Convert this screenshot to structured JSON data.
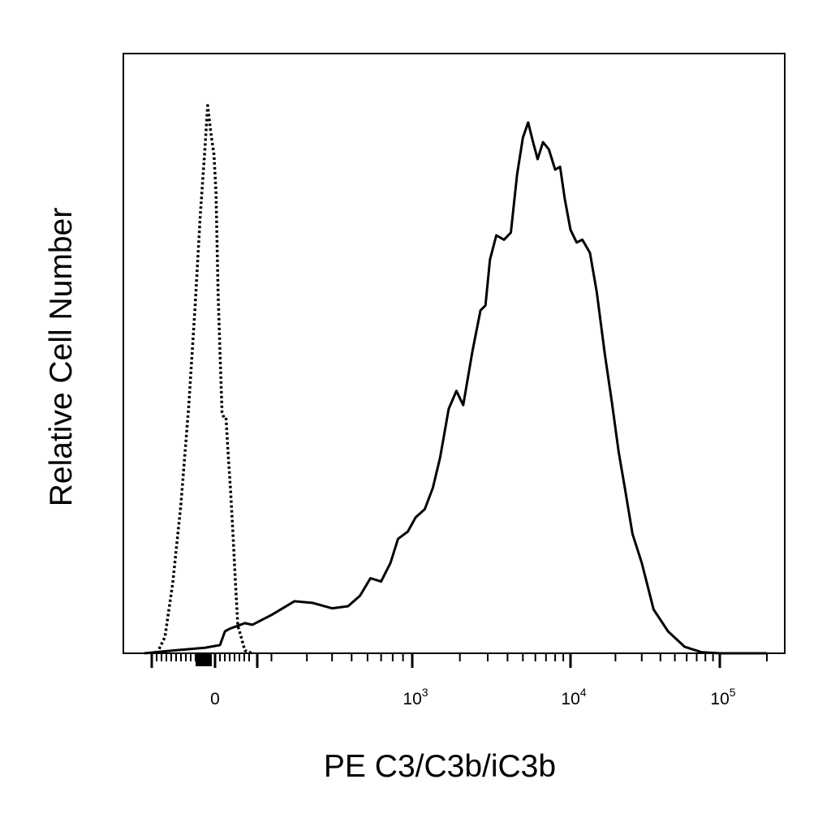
{
  "chart_data": {
    "type": "line",
    "title": "",
    "xlabel": "PE  C3/C3b/iC3b",
    "ylabel": "Relative Cell Number",
    "x_scale": "biexponential (linear near 0, log above 10^2)",
    "xlim": [
      -150,
      200000
    ],
    "ylim": [
      0,
      100
    ],
    "grid": false,
    "legend": "none",
    "x_ticks": [
      {
        "value": 0,
        "base": "0",
        "exp": ""
      },
      {
        "value": 1000,
        "base": "10",
        "exp": "3"
      },
      {
        "value": 10000,
        "base": "10",
        "exp": "4"
      },
      {
        "value": 100000,
        "base": "10",
        "exp": "5"
      }
    ],
    "series": [
      {
        "style": "dotted",
        "color": "#000000",
        "points": [
          [
            -110,
            0
          ],
          [
            -95,
            3
          ],
          [
            -80,
            13
          ],
          [
            -65,
            27
          ],
          [
            -50,
            45
          ],
          [
            -38,
            63
          ],
          [
            -28,
            80
          ],
          [
            -20,
            91
          ],
          [
            -14,
            100
          ],
          [
            -8,
            95
          ],
          [
            -2,
            91
          ],
          [
            4,
            84
          ],
          [
            12,
            66
          ],
          [
            20,
            55
          ],
          [
            28,
            44
          ],
          [
            36,
            43
          ],
          [
            44,
            43
          ],
          [
            52,
            37
          ],
          [
            62,
            30
          ],
          [
            72,
            22
          ],
          [
            82,
            13
          ],
          [
            92,
            5
          ],
          [
            105,
            3
          ],
          [
            120,
            0.5
          ],
          [
            150,
            0
          ]
        ]
      },
      {
        "style": "solid",
        "color": "#000000",
        "points": [
          [
            -150,
            0
          ],
          [
            -80,
            0.5
          ],
          [
            -20,
            1
          ],
          [
            20,
            1.5
          ],
          [
            40,
            4
          ],
          [
            60,
            4.5
          ],
          [
            90,
            5
          ],
          [
            120,
            5.5
          ],
          [
            150,
            5.2
          ],
          [
            200,
            7
          ],
          [
            260,
            9.5
          ],
          [
            320,
            9.2
          ],
          [
            400,
            8.2
          ],
          [
            480,
            8.6
          ],
          [
            550,
            10.5
          ],
          [
            620,
            13.7
          ],
          [
            700,
            13.1
          ],
          [
            780,
            16.5
          ],
          [
            850,
            20.9
          ],
          [
            950,
            22.2
          ],
          [
            1050,
            24.8
          ],
          [
            1200,
            26.3
          ],
          [
            1350,
            30.2
          ],
          [
            1500,
            35.7
          ],
          [
            1700,
            44.6
          ],
          [
            1900,
            47.9
          ],
          [
            2100,
            45.3
          ],
          [
            2400,
            55.1
          ],
          [
            2700,
            62.6
          ],
          [
            2900,
            63.5
          ],
          [
            3100,
            71.9
          ],
          [
            3400,
            76.3
          ],
          [
            3800,
            75.5
          ],
          [
            4200,
            76.8
          ],
          [
            4600,
            87.4
          ],
          [
            5000,
            94.1
          ],
          [
            5400,
            96.9
          ],
          [
            5800,
            93.3
          ],
          [
            6200,
            90.2
          ],
          [
            6700,
            93.3
          ],
          [
            7300,
            92.0
          ],
          [
            8000,
            88.3
          ],
          [
            8600,
            88.8
          ],
          [
            9200,
            83.0
          ],
          [
            10000,
            77.3
          ],
          [
            11000,
            75.0
          ],
          [
            12000,
            75.5
          ],
          [
            13500,
            73.1
          ],
          [
            15000,
            65.9
          ],
          [
            17000,
            54.5
          ],
          [
            19000,
            45.5
          ],
          [
            21000,
            36.8
          ],
          [
            23000,
            30.5
          ],
          [
            26000,
            21.8
          ],
          [
            30000,
            16.5
          ],
          [
            36000,
            8.0
          ],
          [
            45000,
            4.0
          ],
          [
            58000,
            1.2
          ],
          [
            75000,
            0.2
          ],
          [
            100000,
            0
          ],
          [
            200000,
            0
          ]
        ]
      }
    ]
  }
}
